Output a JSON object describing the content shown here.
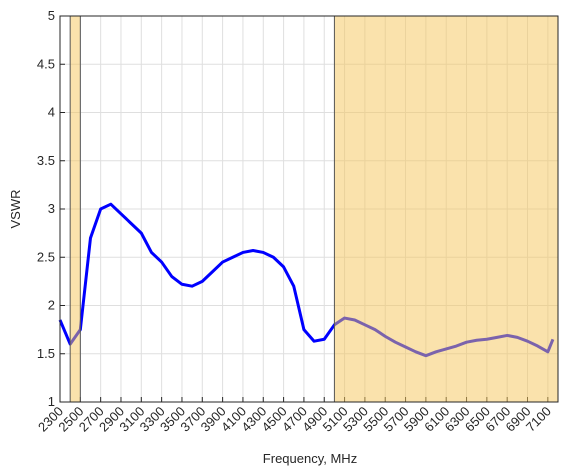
{
  "chart_data": {
    "type": "line",
    "x_label": "Frequency, MHz",
    "y_label": "VSWR",
    "x": [
      2300,
      2400,
      2500,
      2600,
      2700,
      2800,
      2900,
      3000,
      3100,
      3200,
      3300,
      3400,
      3500,
      3600,
      3700,
      3800,
      3900,
      4000,
      4100,
      4200,
      4300,
      4400,
      4500,
      4600,
      4700,
      4800,
      4900,
      5000,
      5100,
      5200,
      5300,
      5400,
      5500,
      5600,
      5700,
      5800,
      5900,
      6000,
      6100,
      6200,
      6300,
      6400,
      6500,
      6600,
      6700,
      6800,
      6900,
      7000,
      7100,
      7150
    ],
    "series": [
      {
        "name": "VSWR",
        "color": "#0000ff",
        "values": [
          1.85,
          1.6,
          1.75,
          2.7,
          3.0,
          3.05,
          2.95,
          2.85,
          2.75,
          2.55,
          2.45,
          2.3,
          2.22,
          2.2,
          2.25,
          2.35,
          2.45,
          2.5,
          2.55,
          2.57,
          2.55,
          2.5,
          2.4,
          2.2,
          1.75,
          1.63,
          1.65,
          1.8,
          1.87,
          1.85,
          1.8,
          1.75,
          1.68,
          1.62,
          1.57,
          1.52,
          1.48,
          1.52,
          1.55,
          1.58,
          1.62,
          1.64,
          1.65,
          1.67,
          1.69,
          1.67,
          1.63,
          1.58,
          1.52,
          1.65
        ]
      }
    ],
    "bands": [
      [
        2400,
        2500
      ],
      [
        5000,
        7200
      ]
    ],
    "band_color": "#f5c65a",
    "xlim": [
      2300,
      7200
    ],
    "xticks": [
      2300,
      2500,
      2700,
      2900,
      3100,
      3300,
      3500,
      3700,
      3900,
      4100,
      4300,
      4500,
      4700,
      4900,
      5100,
      5300,
      5500,
      5700,
      5900,
      6100,
      6300,
      6500,
      6700,
      6900,
      7100
    ],
    "ylim": [
      1,
      5
    ],
    "yticks": [
      1,
      1.5,
      2,
      2.5,
      3,
      3.5,
      4,
      4.5,
      5
    ],
    "grid": true
  }
}
